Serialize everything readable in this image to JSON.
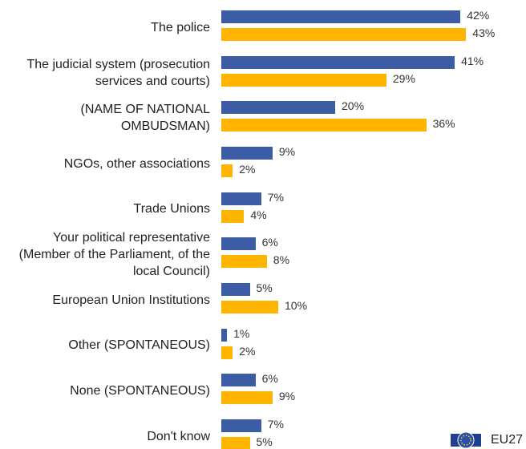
{
  "chart_data": {
    "type": "bar",
    "orientation": "horizontal",
    "categories": [
      "The police",
      "The judicial system (prosecution services and courts)",
      "(NAME OF NATIONAL OMBUDSMAN)",
      "NGOs, other associations",
      "Trade Unions",
      "Your political representative (Member of the Parliament, of the local Council)",
      "European Union Institutions",
      "Other (SPONTANEOUS)",
      "None (SPONTANEOUS)",
      "Don't know"
    ],
    "series": [
      {
        "name": "EU27",
        "color": "#3d5ca6",
        "values": [
          42,
          41,
          20,
          9,
          7,
          6,
          5,
          1,
          6,
          7
        ],
        "value_labels": [
          "42%",
          "41%",
          "20%",
          "9%",
          "7%",
          "6%",
          "5%",
          "1%",
          "6%",
          "7%"
        ]
      },
      {
        "color": "#ffb400",
        "values": [
          43,
          29,
          36,
          2,
          4,
          8,
          10,
          2,
          9,
          5
        ],
        "value_labels": [
          "43%",
          "29%",
          "36%",
          "2%",
          "4%",
          "8%",
          "10%",
          "2%",
          "9%",
          "5%"
        ]
      }
    ]
  }
}
